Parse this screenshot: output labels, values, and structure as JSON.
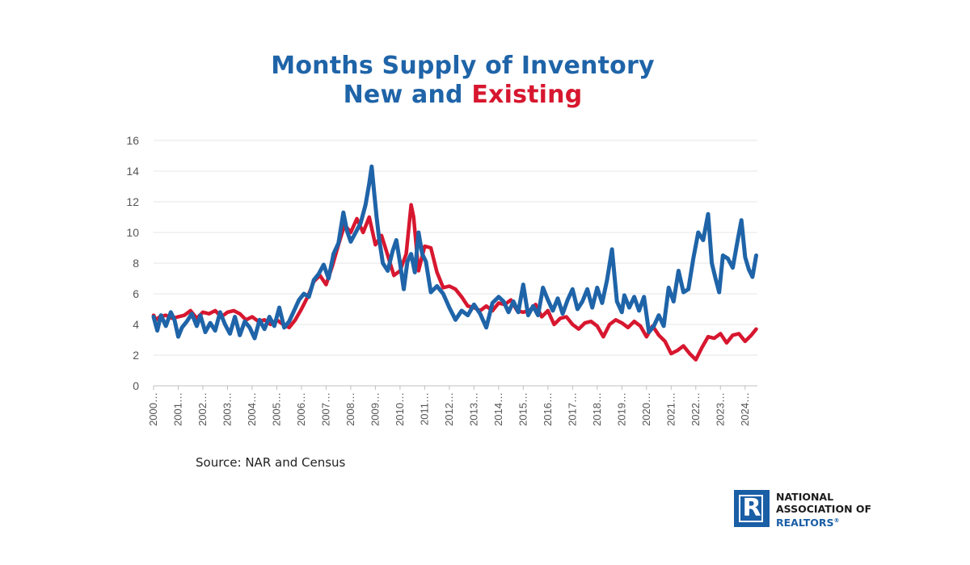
{
  "title": {
    "line1": "Months Supply of Inventory",
    "line2_part1": "New and ",
    "line2_part2": "Existing"
  },
  "source": "Source: NAR and Census",
  "logo": {
    "line1": "NATIONAL",
    "line2": "ASSOCIATION OF",
    "line3": "REALTORS",
    "trademark": "®"
  },
  "colors": {
    "new": "#1f64a8",
    "existing": "#d7172f",
    "grid": "#e6e6e6",
    "axis": "#bfbfbf",
    "tick_text": "#555555"
  },
  "chart_data": {
    "type": "line",
    "title": "Months Supply of Inventory New and Existing",
    "xlabel": "",
    "ylabel": "",
    "ylim": [
      0,
      16
    ],
    "yticks": [
      0,
      2,
      4,
      6,
      8,
      10,
      12,
      14,
      16
    ],
    "xlim": [
      2000,
      2024.5
    ],
    "xticks": [
      2000,
      2001,
      2002,
      2003,
      2004,
      2005,
      2006,
      2007,
      2008,
      2009,
      2010,
      2011,
      2012,
      2013,
      2014,
      2015,
      2016,
      2017,
      2018,
      2019,
      2020,
      2021,
      2022,
      2023,
      2024
    ],
    "xtick_labels": [
      "2000…",
      "2001…",
      "2002…",
      "2003…",
      "2004…",
      "2005…",
      "2006…",
      "2007…",
      "2008…",
      "2009…",
      "2010…",
      "2011…",
      "2012…",
      "2013…",
      "2014…",
      "2015…",
      "2016…",
      "2017…",
      "2018…",
      "2019…",
      "2020…",
      "2021…",
      "2022…",
      "2023…",
      "2024…"
    ],
    "grid": true,
    "legend": "none",
    "series": [
      {
        "key": "existing",
        "x": [
          2000.0,
          2000.1,
          2000.25,
          2000.5,
          2000.75,
          2001.0,
          2001.25,
          2001.5,
          2001.75,
          2002.0,
          2002.25,
          2002.5,
          2002.75,
          2003.0,
          2003.25,
          2003.5,
          2003.75,
          2004.0,
          2004.25,
          2004.5,
          2004.75,
          2005.0,
          2005.25,
          2005.5,
          2005.75,
          2006.0,
          2006.25,
          2006.5,
          2006.75,
          2007.0,
          2007.25,
          2007.5,
          2007.75,
          2008.0,
          2008.25,
          2008.5,
          2008.75,
          2009.0,
          2009.25,
          2009.5,
          2009.75,
          2010.0,
          2010.25,
          2010.45,
          2010.55,
          2010.75,
          2011.0,
          2011.25,
          2011.5,
          2011.75,
          2012.0,
          2012.25,
          2012.5,
          2012.75,
          2013.0,
          2013.25,
          2013.5,
          2013.75,
          2014.0,
          2014.25,
          2014.5,
          2014.75,
          2015.0,
          2015.25,
          2015.5,
          2015.75,
          2016.0,
          2016.25,
          2016.5,
          2016.75,
          2017.0,
          2017.25,
          2017.5,
          2017.75,
          2018.0,
          2018.25,
          2018.5,
          2018.75,
          2019.0,
          2019.25,
          2019.5,
          2019.75,
          2020.0,
          2020.25,
          2020.5,
          2020.75,
          2021.0,
          2021.25,
          2021.5,
          2021.75,
          2022.0,
          2022.25,
          2022.5,
          2022.75,
          2023.0,
          2023.25,
          2023.5,
          2023.75,
          2024.0,
          2024.25,
          2024.45
        ],
        "values": [
          4.6,
          4.3,
          4.5,
          4.6,
          4.4,
          4.5,
          4.6,
          4.9,
          4.4,
          4.8,
          4.7,
          4.9,
          4.5,
          4.8,
          4.9,
          4.7,
          4.3,
          4.5,
          4.2,
          4.3,
          4.0,
          4.3,
          4.0,
          3.8,
          4.3,
          5.0,
          5.8,
          6.8,
          7.2,
          6.6,
          7.8,
          9.2,
          10.5,
          10.0,
          10.9,
          10.0,
          11.0,
          9.2,
          9.8,
          8.5,
          7.2,
          7.5,
          8.6,
          11.8,
          11.0,
          7.5,
          9.1,
          9.0,
          7.4,
          6.4,
          6.5,
          6.3,
          5.8,
          5.2,
          5.1,
          4.9,
          5.2,
          4.9,
          5.4,
          5.3,
          5.6,
          4.9,
          4.8,
          4.9,
          5.3,
          4.5,
          4.9,
          4.0,
          4.4,
          4.5,
          4.0,
          3.7,
          4.1,
          4.2,
          3.9,
          3.2,
          4.0,
          4.3,
          4.1,
          3.8,
          4.2,
          3.9,
          3.2,
          3.9,
          3.3,
          2.9,
          2.1,
          2.3,
          2.6,
          2.1,
          1.7,
          2.5,
          3.2,
          3.1,
          3.4,
          2.8,
          3.3,
          3.4,
          2.9,
          3.3,
          3.7
        ]
      },
      {
        "key": "new",
        "x": [
          2000.0,
          2000.15,
          2000.3,
          2000.5,
          2000.7,
          2000.85,
          2001.0,
          2001.15,
          2001.35,
          2001.55,
          2001.75,
          2001.9,
          2002.1,
          2002.3,
          2002.5,
          2002.7,
          2002.9,
          2003.1,
          2003.3,
          2003.5,
          2003.7,
          2003.9,
          2004.1,
          2004.3,
          2004.5,
          2004.7,
          2004.9,
          2005.1,
          2005.3,
          2005.5,
          2005.7,
          2005.9,
          2006.1,
          2006.3,
          2006.5,
          2006.7,
          2006.9,
          2007.1,
          2007.3,
          2007.5,
          2007.7,
          2007.85,
          2008.0,
          2008.2,
          2008.4,
          2008.6,
          2008.75,
          2008.85,
          2008.95,
          2009.05,
          2009.15,
          2009.3,
          2009.5,
          2009.7,
          2009.85,
          2010.0,
          2010.15,
          2010.3,
          2010.45,
          2010.6,
          2010.75,
          2010.9,
          2011.05,
          2011.25,
          2011.5,
          2011.75,
          2012.0,
          2012.25,
          2012.5,
          2012.75,
          2013.0,
          2013.25,
          2013.5,
          2013.75,
          2014.0,
          2014.2,
          2014.4,
          2014.6,
          2014.8,
          2015.0,
          2015.2,
          2015.4,
          2015.6,
          2015.8,
          2016.0,
          2016.2,
          2016.4,
          2016.6,
          2016.8,
          2017.0,
          2017.2,
          2017.4,
          2017.6,
          2017.8,
          2018.0,
          2018.2,
          2018.4,
          2018.6,
          2018.8,
          2019.0,
          2019.1,
          2019.3,
          2019.5,
          2019.7,
          2019.9,
          2020.1,
          2020.3,
          2020.5,
          2020.7,
          2020.9,
          2021.1,
          2021.3,
          2021.5,
          2021.7,
          2021.9,
          2022.1,
          2022.3,
          2022.5,
          2022.65,
          2022.8,
          2022.95,
          2023.1,
          2023.3,
          2023.5,
          2023.7,
          2023.85,
          2024.0,
          2024.15,
          2024.3,
          2024.45
        ],
        "values": [
          4.5,
          3.6,
          4.6,
          3.9,
          4.8,
          4.3,
          3.2,
          3.8,
          4.2,
          4.7,
          3.9,
          4.6,
          3.5,
          4.1,
          3.6,
          4.8,
          4.0,
          3.4,
          4.5,
          3.3,
          4.2,
          3.8,
          3.1,
          4.3,
          3.7,
          4.5,
          3.9,
          5.1,
          3.8,
          4.2,
          4.9,
          5.6,
          6.0,
          5.8,
          6.9,
          7.3,
          7.9,
          7.0,
          8.6,
          9.3,
          11.3,
          10.1,
          9.4,
          10.0,
          10.6,
          11.8,
          13.2,
          14.3,
          12.6,
          11.0,
          9.6,
          8.0,
          7.5,
          8.8,
          9.5,
          8.0,
          6.3,
          8.1,
          8.6,
          7.4,
          10.0,
          8.6,
          8.1,
          6.1,
          6.5,
          6.0,
          5.1,
          4.3,
          4.9,
          4.6,
          5.3,
          4.7,
          3.8,
          5.4,
          5.8,
          5.5,
          4.8,
          5.5,
          4.8,
          6.6,
          4.6,
          5.2,
          4.6,
          6.4,
          5.6,
          4.9,
          5.7,
          4.7,
          5.6,
          6.3,
          5.0,
          5.5,
          6.3,
          5.1,
          6.4,
          5.4,
          6.9,
          8.9,
          5.5,
          4.8,
          5.9,
          5.1,
          5.8,
          4.9,
          5.8,
          3.5,
          3.9,
          4.6,
          3.9,
          6.4,
          5.5,
          7.5,
          6.1,
          6.3,
          8.3,
          10.0,
          9.5,
          11.2,
          8.0,
          7.0,
          6.1,
          8.5,
          8.3,
          7.7,
          9.5,
          10.8,
          8.4,
          7.6,
          7.1,
          8.5
        ]
      }
    ]
  }
}
